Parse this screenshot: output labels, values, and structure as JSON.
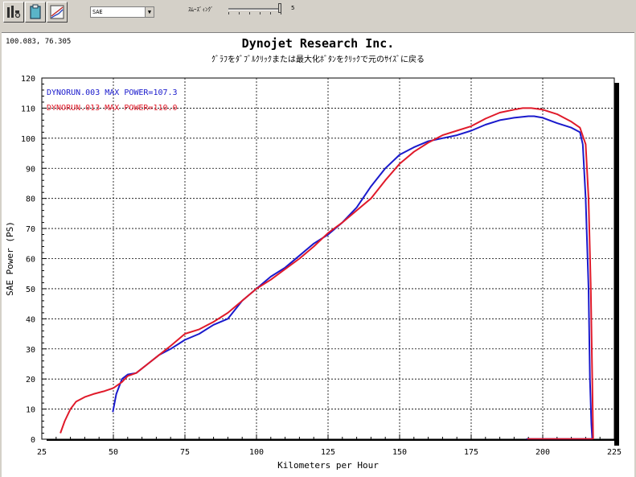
{
  "toolbar": {
    "buttons": [
      {
        "name": "settings-tool-icon"
      },
      {
        "name": "clipboard-icon"
      },
      {
        "name": "graph-view-icon"
      }
    ],
    "correction_select": {
      "selected": "SAE"
    },
    "smoothing_label": "ｽﾑｰｽﾞｨﾝｸﾞ",
    "smoothing_value": "5",
    "smoothing_level": 5,
    "smoothing_max": 5
  },
  "cursor_readout": "100.083, 76.305",
  "title": "Dynojet  Research  Inc.",
  "subtitle": "ｸﾞﾗﾌをﾀﾞﾌﾞﾙｸﾘｯｸまたは最大化ﾎﾞﾀﾝをｸﾘｯｸで元のｻｲｽﾞに戻る",
  "colors": {
    "run1": "#1a1acc",
    "run2": "#e01a2a",
    "grid": "#000000"
  },
  "chart_data": {
    "type": "line",
    "xlabel": "Kilometers per Hour",
    "ylabel": "SAE Power (PS)",
    "xlim": [
      25,
      225
    ],
    "ylim": [
      0,
      120
    ],
    "xticks": [
      25,
      50,
      75,
      100,
      125,
      150,
      175,
      200,
      225
    ],
    "yticks": [
      0,
      10,
      20,
      30,
      40,
      50,
      60,
      70,
      80,
      90,
      100,
      110,
      120
    ],
    "grid": true,
    "legend_position": "top-left",
    "series": [
      {
        "name": "DYNORUN.003",
        "legend": "DYNORUN.003  MAX POWER=107.3",
        "color": "#1a1acc",
        "x": [
          49.8,
          51,
          53,
          55,
          58,
          62,
          66,
          70,
          75,
          80,
          85,
          90,
          95,
          100,
          105,
          110,
          115,
          120,
          125,
          130,
          135,
          140,
          145,
          150,
          155,
          160,
          165,
          170,
          175,
          180,
          185,
          190,
          195,
          197,
          200,
          205,
          210,
          213,
          214,
          215,
          216,
          216.5,
          217,
          217.3
        ],
        "y": [
          9,
          15,
          20,
          21.5,
          22,
          25,
          28,
          30,
          33,
          35,
          38,
          40,
          46,
          50,
          54,
          57,
          61,
          65,
          68,
          72,
          77,
          84,
          90,
          94.5,
          97,
          99,
          100,
          101,
          102.5,
          104.5,
          106,
          106.8,
          107.3,
          107.3,
          106.8,
          105,
          103.5,
          102,
          98,
          80,
          50,
          20,
          5,
          0
        ]
      },
      {
        "name": "DYNORUN.013",
        "legend": "DYNORUN.013  MAX POWER=110.0",
        "color": "#e01a2a",
        "x": [
          31.5,
          33,
          35,
          37,
          40,
          43,
          47,
          50,
          53,
          55,
          58,
          62,
          66,
          70,
          75,
          80,
          85,
          90,
          95,
          100,
          105,
          110,
          115,
          120,
          125,
          130,
          135,
          140,
          145,
          150,
          155,
          160,
          165,
          170,
          175,
          180,
          185,
          190,
          193,
          196,
          200,
          205,
          210,
          213,
          215,
          216,
          216.8,
          217.3,
          217.6
        ],
        "y": [
          2,
          6,
          10,
          12.5,
          14,
          15,
          16,
          17,
          19,
          21,
          22,
          25,
          28,
          31,
          35,
          36.5,
          39,
          42,
          46,
          50,
          53,
          56.5,
          60,
          64,
          68.5,
          72,
          76,
          80,
          86,
          91.5,
          95.5,
          98.5,
          101,
          102.5,
          104,
          106.5,
          108.5,
          109.5,
          110,
          110,
          109.5,
          108,
          105.5,
          103.5,
          98,
          80,
          50,
          20,
          0
        ]
      }
    ]
  }
}
